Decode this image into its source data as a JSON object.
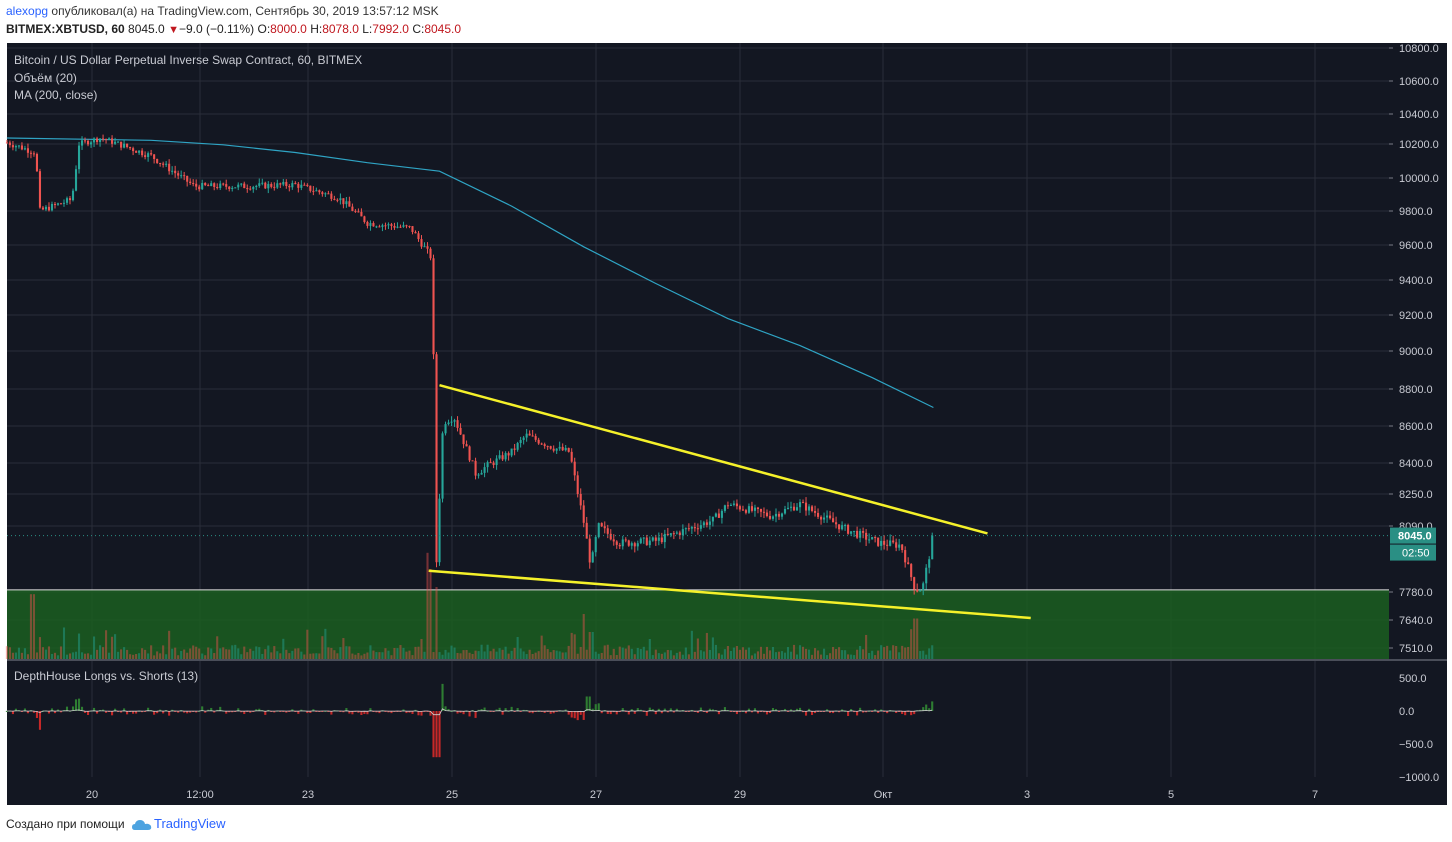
{
  "header": {
    "line1_user": "alexopg",
    "line1_text": "опубликовал(а) на TradingView.com, Сентябрь 30, 2019 13:57:12 MSK",
    "symbol": "BITMEX:XBTUSD, 60",
    "last": "8045.0",
    "change": "−9.0 (−0.11%)",
    "o_label": "O:",
    "o": "8000.0",
    "h_label": "H:",
    "h": "8078.0",
    "l_label": "L:",
    "l": "7992.0",
    "c_label": "C:",
    "c": "8045.0"
  },
  "legend": {
    "title": "Bitcoin / US Dollar Perpetual Inverse Swap Contract, 60, BITMEX",
    "volume": "Объём (20)",
    "ma": "MA (200, close)",
    "indicator": "DepthHouse Longs vs. Shorts (13)"
  },
  "footer": {
    "text": "Создано при помощи",
    "brand": "TradingView"
  },
  "colors": {
    "bg": "#131722",
    "grid": "#2a2e39",
    "up": "#26a69a",
    "down": "#ef5350",
    "ma": "#2fa4c4",
    "trend": "#f5f12a",
    "zone": "#1b5e20",
    "price_tag": "#2a8f84"
  },
  "chart_data": {
    "type": "candlestick",
    "title": "Bitcoin / US Dollar Perpetual Inverse Swap Contract, 60, BITMEX",
    "price_axis": [
      "10800.0",
      "10600.0",
      "10400.0",
      "10200.0",
      "10000.0",
      "9800.0",
      "9600.0",
      "9400.0",
      "9200.0",
      "9000.0",
      "8800.0",
      "8600.0",
      "8400.0",
      "8250.0",
      "8090.0",
      "7780.0",
      "7640.0",
      "7510.0"
    ],
    "price_axis_values": [
      10800,
      10600,
      10400,
      10200,
      10000,
      9800,
      9600,
      9400,
      9200,
      9000,
      8800,
      8600,
      8400,
      8250,
      8090,
      7780,
      7640,
      7510
    ],
    "time_axis": [
      "20",
      "12:00",
      "23",
      "25",
      "27",
      "29",
      "Окт",
      "3",
      "5",
      "7"
    ],
    "time_axis_day": [
      19.0,
      19.52,
      21.0,
      23.0,
      25.0,
      27.0,
      29.0,
      31.0,
      33.0,
      35.0
    ],
    "last_price": "8045.0",
    "countdown": "02:50",
    "key_points": [
      {
        "t": 0.0,
        "p": 10210
      },
      {
        "t": 0.4,
        "p": 10150
      },
      {
        "t": 0.45,
        "p": 9800
      },
      {
        "t": 0.9,
        "p": 9870
      },
      {
        "t": 1.0,
        "p": 10200
      },
      {
        "t": 1.3,
        "p": 10240
      },
      {
        "t": 2.0,
        "p": 10130
      },
      {
        "t": 2.6,
        "p": 9950
      },
      {
        "t": 3.3,
        "p": 9950
      },
      {
        "t": 4.0,
        "p": 9960
      },
      {
        "t": 4.6,
        "p": 9880
      },
      {
        "t": 5.0,
        "p": 9730
      },
      {
        "t": 5.6,
        "p": 9700
      },
      {
        "t": 5.9,
        "p": 9520
      },
      {
        "t": 5.95,
        "p": 7860
      },
      {
        "t": 6.05,
        "p": 8620
      },
      {
        "t": 6.2,
        "p": 8650
      },
      {
        "t": 6.5,
        "p": 8350
      },
      {
        "t": 7.0,
        "p": 8460
      },
      {
        "t": 7.2,
        "p": 8550
      },
      {
        "t": 7.6,
        "p": 8480
      },
      {
        "t": 7.8,
        "p": 8460
      },
      {
        "t": 8.0,
        "p": 8110
      },
      {
        "t": 8.1,
        "p": 7900
      },
      {
        "t": 8.2,
        "p": 8090
      },
      {
        "t": 8.5,
        "p": 8010
      },
      {
        "t": 9.0,
        "p": 8020
      },
      {
        "t": 9.8,
        "p": 8120
      },
      {
        "t": 10.0,
        "p": 8200
      },
      {
        "t": 10.6,
        "p": 8140
      },
      {
        "t": 11.0,
        "p": 8200
      },
      {
        "t": 11.6,
        "p": 8080
      },
      {
        "t": 12.1,
        "p": 8010
      },
      {
        "t": 12.4,
        "p": 8000
      },
      {
        "t": 12.6,
        "p": 7790
      },
      {
        "t": 12.7,
        "p": 7800
      },
      {
        "t": 12.85,
        "p": 8045
      }
    ],
    "ma_points": [
      {
        "t": 0.0,
        "p": 10240
      },
      {
        "t": 2.0,
        "p": 10225
      },
      {
        "t": 3.0,
        "p": 10195
      },
      {
        "t": 4.0,
        "p": 10150
      },
      {
        "t": 5.0,
        "p": 10090
      },
      {
        "t": 6.0,
        "p": 10040
      },
      {
        "t": 7.0,
        "p": 9830
      },
      {
        "t": 8.0,
        "p": 9590
      },
      {
        "t": 9.0,
        "p": 9380
      },
      {
        "t": 10.0,
        "p": 9180
      },
      {
        "t": 11.0,
        "p": 9030
      },
      {
        "t": 12.0,
        "p": 8860
      },
      {
        "t": 12.85,
        "p": 8700
      }
    ],
    "trendlines": [
      {
        "from": {
          "t": 6.0,
          "p": 8820
        },
        "to": {
          "t": 13.6,
          "p": 8055
        }
      },
      {
        "from": {
          "t": 5.85,
          "p": 7880
        },
        "to": {
          "t": 14.2,
          "p": 7650
        }
      }
    ],
    "zone": {
      "from": 7790,
      "to": 7480
    },
    "volume_spikes": [
      {
        "t": 0.35,
        "v": 0.72
      },
      {
        "t": 0.8,
        "v": 0.35
      },
      {
        "t": 1.2,
        "v": 0.25
      },
      {
        "t": 5.85,
        "v": 1.0
      },
      {
        "t": 5.95,
        "v": 0.8
      },
      {
        "t": 8.0,
        "v": 0.5
      },
      {
        "t": 8.1,
        "v": 0.3
      },
      {
        "t": 12.6,
        "v": 0.45
      }
    ],
    "indicator_axis": [
      "500.0",
      "0.0",
      "−500.0",
      "−1000.0"
    ],
    "indicator_axis_values": [
      500,
      0,
      -500,
      -1000
    ]
  }
}
